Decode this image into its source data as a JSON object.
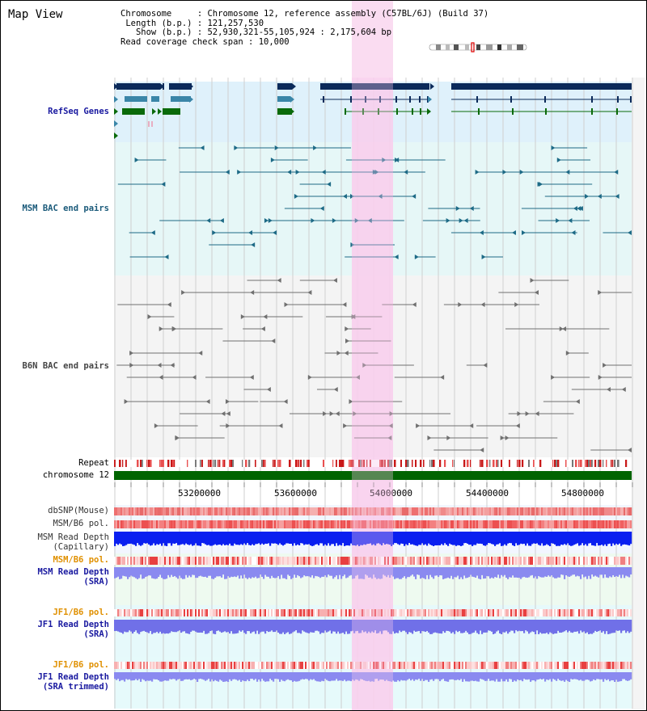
{
  "window": {
    "title": "Map View"
  },
  "info": {
    "chromosome_label": "Chromosome",
    "chromosome_value": "Chromosome 12, reference assembly (C57BL/6J) (Build 37)",
    "length_label": "Length (b.p.)",
    "length_value": "121,257,530",
    "show_label": "Show (b.p.)",
    "show_value": "52,930,321-55,105,924 : 2,175,604 bp",
    "coverage_label": "Read coverage check span",
    "coverage_value": "10,000"
  },
  "tracks": {
    "refseq": "RefSeq Genes",
    "msm_bac": "MSM BAC end pairs",
    "b6n_bac": "B6N BAC end pairs",
    "repeat": "Repeat",
    "chromosome": "chromosome 12",
    "dbsnp": "dbSNP(Mouse)",
    "msm_b6_pol_1": "MSM/B6 pol.",
    "msm_read_depth_cap_1": "MSM Read Depth",
    "msm_read_depth_cap_2": "(Capillary)",
    "msm_b6_pol_2": "MSM/B6 pol.",
    "msm_read_depth_sra_1": "MSM Read Depth",
    "msm_read_depth_sra_2": "(SRA)",
    "jf1_b6_pol_1": "JF1/B6 pol.",
    "jf1_read_depth_sra_1": "JF1 Read Depth",
    "jf1_read_depth_sra_2": "(SRA)",
    "jf1_b6_pol_2": "JF1/B6 pol.",
    "jf1_read_depth_trim_1": "JF1 Read Depth",
    "jf1_read_depth_trim_2": "(SRA trimmed)"
  },
  "axis": {
    "ticks": [
      "53200000",
      "53600000",
      "54000000",
      "54400000",
      "54800000"
    ]
  },
  "colors": {
    "refseq_label": "#1a1aa0",
    "msm_label": "#1a5a7a",
    "b6n_label": "#444444",
    "orange_label": "#e09000",
    "blue_label": "#1a1aa0",
    "highlight": "#f9d6ee",
    "chromosome_bar": "#006400"
  }
}
